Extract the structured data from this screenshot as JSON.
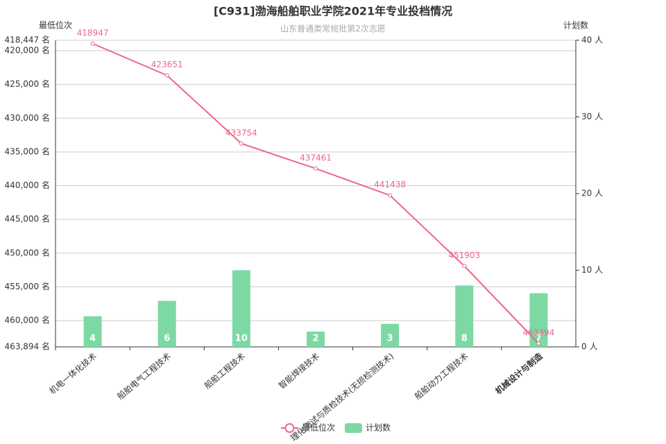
{
  "chart_data": {
    "type": "combo",
    "title": "[C931]渤海船舶职业学院2021年专业投档情况",
    "subtitle": "山东普通类常规批第2次志愿",
    "y_axis_label": "最低位次",
    "y2_axis_label": "计划数",
    "categories": [
      "机电一体化技术",
      "船舶电气工程技术",
      "船舶工程技术",
      "智能焊接技术",
      "理化测试与质检技术(无损检测技术)",
      "船舶动力工程技术",
      "机械设计与制造"
    ],
    "series": [
      {
        "name": "最低位次",
        "kind": "line",
        "color": "#ee6688",
        "axis": "y",
        "values": [
          418947,
          423651,
          433754,
          437461,
          441438,
          451903,
          463394
        ]
      },
      {
        "name": "计划数",
        "kind": "bar",
        "color": "#7dd9a4",
        "axis": "y2",
        "values": [
          4,
          6,
          10,
          2,
          3,
          8,
          7
        ]
      }
    ],
    "ylim": [
      418447,
      463894
    ],
    "y_inverted": true,
    "yticks": [
      {
        "value": 418447,
        "label": "418,447 名"
      },
      {
        "value": 420000,
        "label": "420,000 名"
      },
      {
        "value": 425000,
        "label": "425,000 名"
      },
      {
        "value": 430000,
        "label": "430,000 名"
      },
      {
        "value": 435000,
        "label": "435,000 名"
      },
      {
        "value": 440000,
        "label": "440,000 名"
      },
      {
        "value": 445000,
        "label": "445,000 名"
      },
      {
        "value": 450000,
        "label": "450,000 名"
      },
      {
        "value": 455000,
        "label": "455,000 名"
      },
      {
        "value": 460000,
        "label": "460,000 名"
      },
      {
        "value": 463894,
        "label": "463,894 名"
      }
    ],
    "y2lim": [
      0,
      40
    ],
    "y2ticks": [
      {
        "value": 0,
        "label": "0 人"
      },
      {
        "value": 10,
        "label": "10 人"
      },
      {
        "value": 20,
        "label": "20 人"
      },
      {
        "value": 30,
        "label": "30 人"
      },
      {
        "value": 40,
        "label": "40 人"
      }
    ],
    "grid": true,
    "legend": "bottom"
  }
}
